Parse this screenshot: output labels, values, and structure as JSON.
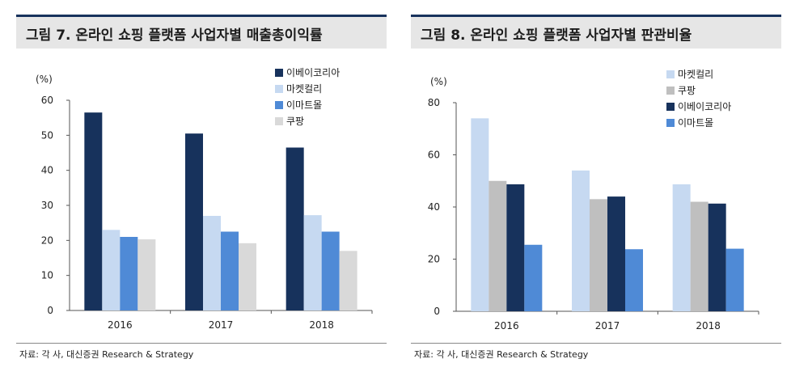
{
  "chart_data": [
    {
      "type": "bar",
      "title": "그림 7. 온라인 쇼핑 플랫폼 사업자별 매출총이익률",
      "ylabel": "(%)",
      "ylim": [
        0,
        60
      ],
      "yticks": [
        0,
        10,
        20,
        30,
        40,
        50,
        60
      ],
      "categories": [
        "2016",
        "2017",
        "2018"
      ],
      "legend_position": "top-right",
      "series": [
        {
          "name": "이베이코리아",
          "color": "#17325c",
          "values": [
            56.5,
            50.5,
            46.5
          ]
        },
        {
          "name": "마켓컬리",
          "color": "#c6d9f1",
          "values": [
            23,
            27,
            27.2
          ]
        },
        {
          "name": "이마트몰",
          "color": "#4f8ad6",
          "values": [
            21,
            22.5,
            22.5
          ]
        },
        {
          "name": "쿠팡",
          "color": "#d9d9d9",
          "values": [
            20.3,
            19.2,
            17
          ]
        }
      ],
      "source": "자료: 각 사, 대신증권 Research & Strategy"
    },
    {
      "type": "bar",
      "title": "그림 8. 온라인 쇼핑 플랫폼 사업자별 판관비율",
      "ylabel": "(%)",
      "ylim": [
        0,
        80
      ],
      "yticks": [
        0,
        20,
        40,
        60,
        80
      ],
      "categories": [
        "2016",
        "2017",
        "2018"
      ],
      "legend_position": "top-right",
      "series": [
        {
          "name": "마켓컬리",
          "color": "#c6d9f1",
          "values": [
            74,
            54,
            48.7
          ]
        },
        {
          "name": "쿠팡",
          "color": "#bfbfbf",
          "values": [
            50,
            43,
            42
          ]
        },
        {
          "name": "이베이코리아",
          "color": "#17325c",
          "values": [
            48.7,
            44,
            41.3
          ]
        },
        {
          "name": "이마트몰",
          "color": "#4f8ad6",
          "values": [
            25.5,
            23.8,
            24
          ]
        }
      ],
      "source": "자료: 각 사, 대신증권 Research & Strategy"
    }
  ]
}
